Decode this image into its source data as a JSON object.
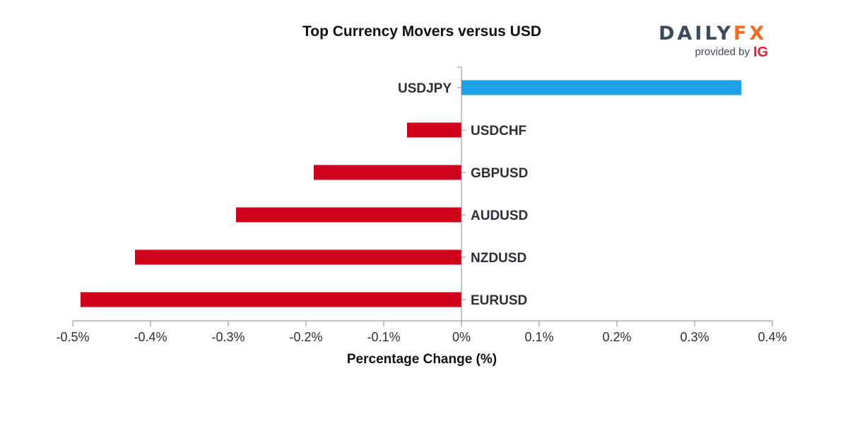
{
  "chart_data": {
    "type": "bar",
    "orientation": "horizontal",
    "title": "Top Currency Movers versus USD",
    "xlabel": "Percentage Change (%)",
    "ylabel": "",
    "xlim": [
      -0.5,
      0.4
    ],
    "ticks": [
      -0.5,
      -0.4,
      -0.3,
      -0.2,
      -0.1,
      0,
      0.1,
      0.2,
      0.3,
      0.4
    ],
    "tick_labels": [
      "-0.5%",
      "-0.4%",
      "-0.3%",
      "-0.2%",
      "-0.1%",
      "0%",
      "0.1%",
      "0.2%",
      "0.3%",
      "0.4%"
    ],
    "categories": [
      "USDJPY",
      "USDCHF",
      "GBPUSD",
      "AUDUSD",
      "NZDUSD",
      "EURUSD"
    ],
    "values": [
      0.36,
      -0.07,
      -0.19,
      -0.29,
      -0.42,
      -0.49
    ],
    "colors": {
      "positive": "#1ea0e6",
      "negative": "#d0021b",
      "axis": "#888888"
    }
  },
  "logo": {
    "brand_left": "DAILY",
    "brand_right": "FX",
    "provided_by": "provided by",
    "partner": "IG"
  }
}
